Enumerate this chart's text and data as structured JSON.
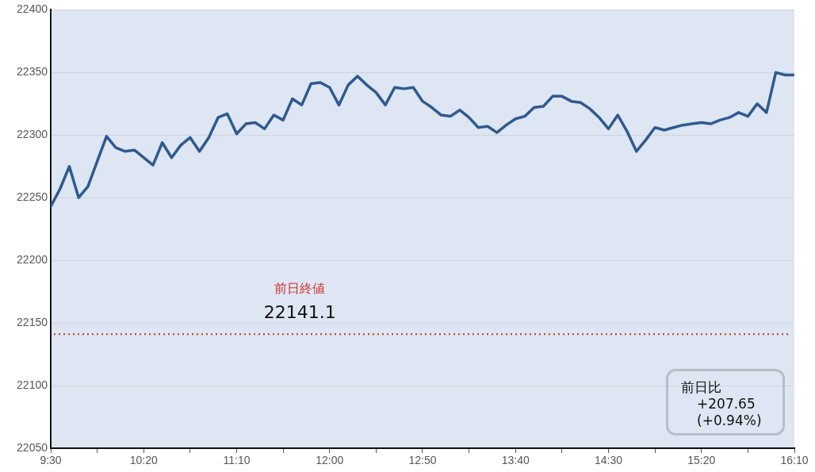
{
  "chart_data": {
    "type": "line",
    "x": [
      9.5,
      9.583333,
      9.666667,
      9.75,
      9.833333,
      9.916667,
      10,
      10.083333,
      10.166667,
      10.25,
      10.333333,
      10.416667,
      10.5,
      10.583333,
      10.666667,
      10.75,
      10.833333,
      10.916667,
      11,
      11.083333,
      11.166667,
      11.25,
      11.333333,
      11.416667,
      11.5,
      11.583333,
      11.666667,
      11.75,
      11.833333,
      11.916667,
      12,
      12.083333,
      12.166667,
      12.25,
      12.333333,
      12.416667,
      12.5,
      12.583333,
      12.666667,
      12.75,
      12.833333,
      12.916667,
      13,
      13.083333,
      13.166667,
      13.25,
      13.333333,
      13.416667,
      13.5,
      13.583333,
      13.666667,
      13.75,
      13.833333,
      13.916667,
      14,
      14.083333,
      14.166667,
      14.25,
      14.333333,
      14.416667,
      14.5,
      14.583333,
      14.666667,
      14.75,
      14.833333,
      14.916667,
      15,
      15.083333,
      15.166667,
      15.25,
      15.333333,
      15.416667,
      15.5,
      15.583333,
      15.666667,
      15.75,
      15.833333,
      15.916667,
      16,
      16.083333,
      16.166667
    ],
    "series": [
      {
        "color": "#2f5a8f",
        "values": [
          22243,
          22257,
          22275,
          22250,
          22259,
          22279,
          22299,
          22290,
          22287,
          22288,
          22282,
          22276,
          22294,
          22282,
          22292,
          22298,
          22287,
          22298,
          22314,
          22317,
          22301,
          22309,
          22310,
          22305,
          22316,
          22312,
          22329,
          22324,
          22341,
          22342,
          22338,
          22324,
          22340,
          22347,
          22340,
          22334,
          22324,
          22338,
          22337,
          22338,
          22327,
          22322,
          22316,
          22315,
          22320,
          22314,
          22306,
          22307,
          22302,
          22308,
          22313,
          22315,
          22322,
          22323,
          22331,
          22331,
          22327,
          22326,
          22321,
          22314,
          22305,
          22316,
          22303,
          22287,
          22296,
          22306,
          22304,
          22306,
          22308,
          22309,
          22310,
          22309,
          22312,
          22314,
          22318,
          22315,
          22325,
          22318,
          22350,
          22348,
          22348
        ]
      }
    ],
    "xlim": [
      9.5,
      16.166667
    ],
    "xticks": [
      {
        "value": 9.5,
        "label": "9:30"
      },
      {
        "value": 9.916667,
        "label": null
      },
      {
        "value": 10.333333,
        "label": "10:20"
      },
      {
        "value": 10.75,
        "label": null
      },
      {
        "value": 11.166667,
        "label": "11:10"
      },
      {
        "value": 11.583333,
        "label": null
      },
      {
        "value": 12,
        "label": "12:00"
      },
      {
        "value": 12.416667,
        "label": null
      },
      {
        "value": 12.833333,
        "label": "12:50"
      },
      {
        "value": 13.25,
        "label": null
      },
      {
        "value": 13.666667,
        "label": "13:40"
      },
      {
        "value": 14.083333,
        "label": null
      },
      {
        "value": 14.5,
        "label": "14:30"
      },
      {
        "value": 14.916667,
        "label": null
      },
      {
        "value": 15.333333,
        "label": "15:20"
      },
      {
        "value": 15.75,
        "label": null
      },
      {
        "value": 16.166667,
        "label": "16:10"
      }
    ],
    "ylim": [
      22050,
      22400
    ],
    "yticks": [
      22050,
      22100,
      22150,
      22200,
      22250,
      22300,
      22350,
      22400
    ],
    "grid": "y",
    "marker": "none",
    "line_style": "solid",
    "legend": false,
    "ref_lines": [
      {
        "axis": "y",
        "value": 22141.1,
        "label": "前日終値\n22141.1",
        "color": "#d03030",
        "line_style": "dotted"
      }
    ],
    "annotations": [
      "前日比",
      "+207.65",
      "(+0.94%)"
    ]
  }
}
